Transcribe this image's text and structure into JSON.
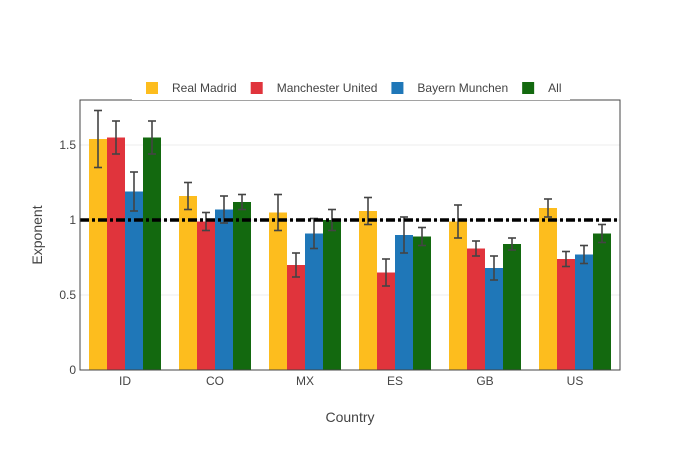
{
  "chart_data": {
    "type": "bar",
    "xlabel": "Country",
    "ylabel": "Exponent",
    "categories": [
      "ID",
      "CO",
      "MX",
      "ES",
      "GB",
      "US"
    ],
    "ylim": [
      0,
      1.8
    ],
    "yticks": [
      0,
      0.5,
      1,
      1.5
    ],
    "ytick_labels": [
      "0",
      "0.5",
      "1",
      "1.5"
    ],
    "legend_position": "top",
    "grid": true,
    "reference_line": {
      "y": 1,
      "style": "dash-dot",
      "color": "#000000"
    },
    "series": [
      {
        "name": "Real Madrid",
        "color": "#FDBD1E",
        "values": [
          1.54,
          1.16,
          1.05,
          1.06,
          0.99,
          1.08
        ],
        "errors": [
          0.19,
          0.09,
          0.12,
          0.09,
          0.11,
          0.06
        ]
      },
      {
        "name": "Manchester United",
        "color": "#E0343C",
        "values": [
          1.55,
          0.99,
          0.7,
          0.65,
          0.81,
          0.74
        ],
        "errors": [
          0.11,
          0.06,
          0.08,
          0.09,
          0.05,
          0.05
        ]
      },
      {
        "name": "Bayern Munchen",
        "color": "#1F77B8",
        "values": [
          1.19,
          1.07,
          0.91,
          0.9,
          0.68,
          0.77
        ],
        "errors": [
          0.13,
          0.09,
          0.1,
          0.12,
          0.08,
          0.06
        ]
      },
      {
        "name": "All",
        "color": "#13690F",
        "values": [
          1.55,
          1.12,
          1.0,
          0.89,
          0.84,
          0.91
        ],
        "errors": [
          0.11,
          0.05,
          0.07,
          0.06,
          0.04,
          0.06
        ]
      }
    ]
  }
}
